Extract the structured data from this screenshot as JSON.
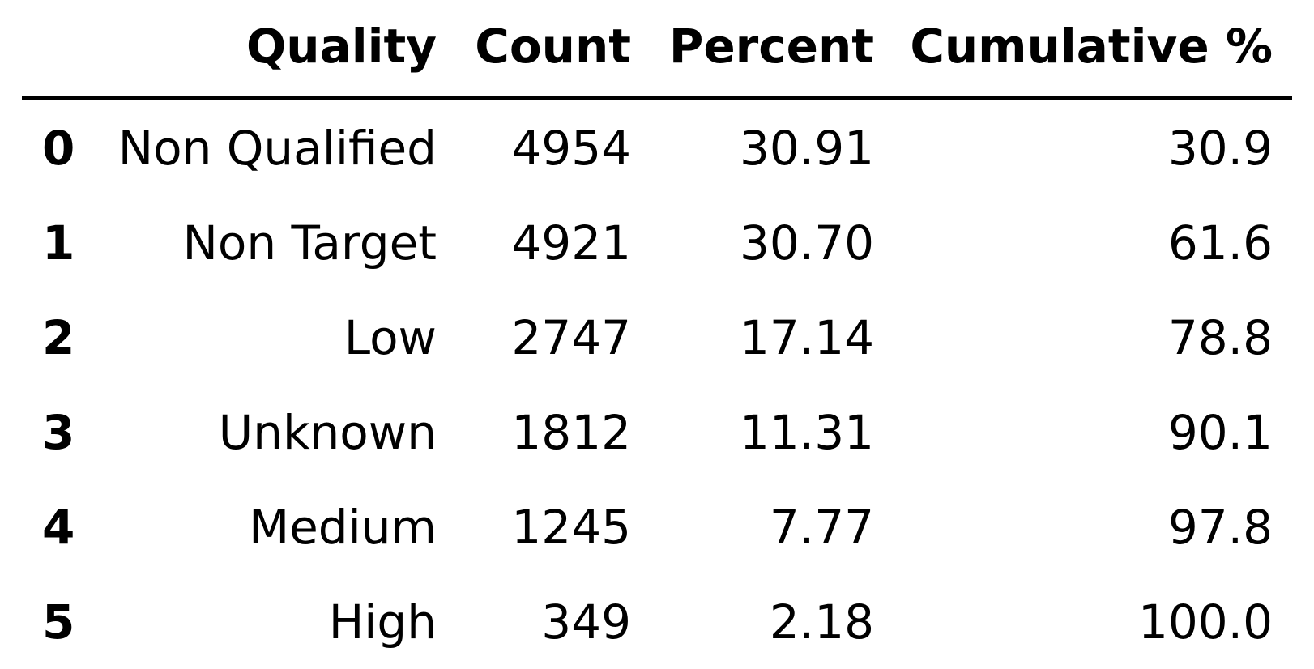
{
  "table": {
    "columns": [
      "",
      "Quality",
      "Count",
      "Percent",
      "Cumulative %"
    ],
    "rows": [
      {
        "index": "0",
        "quality": "Non Qualified",
        "count": "4954",
        "percent": "30.91",
        "cumulative": "30.9"
      },
      {
        "index": "1",
        "quality": "Non Target",
        "count": "4921",
        "percent": "30.70",
        "cumulative": "61.6"
      },
      {
        "index": "2",
        "quality": "Low",
        "count": "2747",
        "percent": "17.14",
        "cumulative": "78.8"
      },
      {
        "index": "3",
        "quality": "Unknown",
        "count": "1812",
        "percent": "11.31",
        "cumulative": "90.1"
      },
      {
        "index": "4",
        "quality": "Medium",
        "count": "1245",
        "percent": "7.77",
        "cumulative": "97.8"
      },
      {
        "index": "5",
        "quality": "High",
        "count": "349",
        "percent": "2.18",
        "cumulative": "100.0"
      }
    ]
  }
}
